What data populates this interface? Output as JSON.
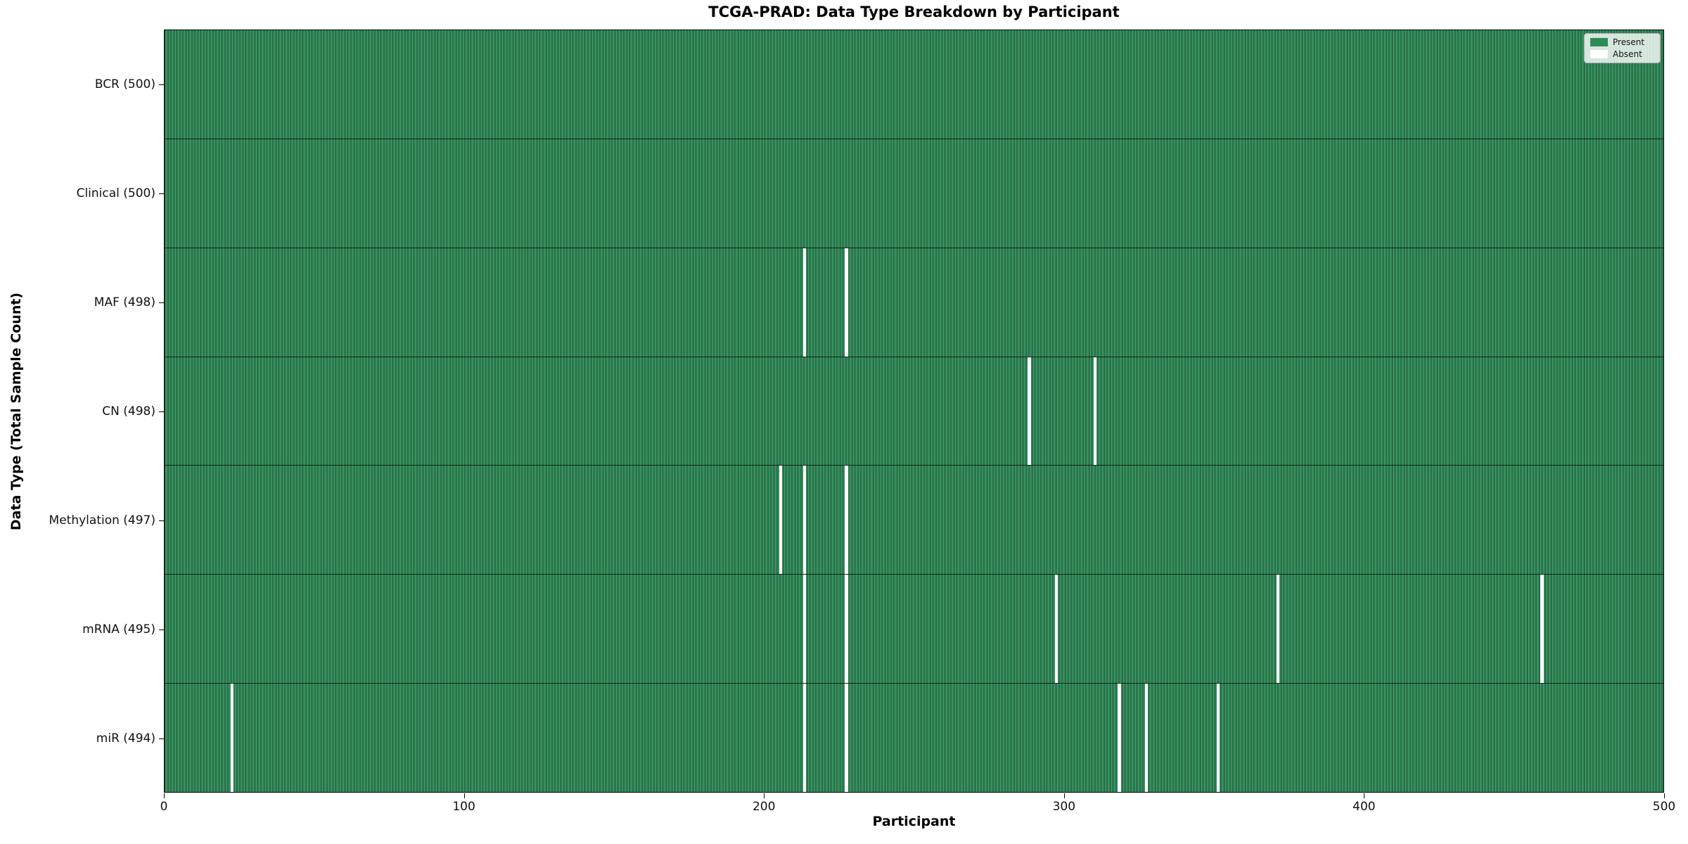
{
  "title": "TCGA-PRAD: Data Type Breakdown by Participant",
  "axes": {
    "xlabel": "Participant",
    "ylabel": "Data Type (Total Sample Count)"
  },
  "legend": {
    "present_label": "Present",
    "absent_label": "Absent"
  },
  "colors": {
    "present": "#2e8b57",
    "present_fill": "#37905f",
    "bar_edge": "#1e5134",
    "absent": "#ffffff",
    "row_separator": "rgba(0,0,0,0.72)",
    "spine": "#000000"
  },
  "chart_data": {
    "type": "heatmap",
    "title": "TCGA-PRAD: Data Type Breakdown by Participant",
    "xlabel": "Participant",
    "ylabel": "Data Type (Total Sample Count)",
    "legend_entries": [
      "Present",
      "Absent"
    ],
    "legend_position": "upper right",
    "grid": false,
    "n_participants": 500,
    "xlim": [
      0,
      500
    ],
    "x_ticks": [
      0,
      100,
      200,
      300,
      400,
      500
    ],
    "rows": [
      {
        "label": "BCR (500)",
        "total": 500,
        "absent_participants": []
      },
      {
        "label": "Clinical (500)",
        "total": 500,
        "absent_participants": []
      },
      {
        "label": "MAF (498)",
        "total": 498,
        "absent_participants": [
          213,
          227
        ]
      },
      {
        "label": "CN (498)",
        "total": 498,
        "absent_participants": [
          288,
          310
        ]
      },
      {
        "label": "Methylation (497)",
        "total": 497,
        "absent_participants": [
          205,
          213,
          227
        ]
      },
      {
        "label": "mRNA (495)",
        "total": 495,
        "absent_participants": [
          213,
          227,
          297,
          371,
          459
        ]
      },
      {
        "label": "miR (494)",
        "total": 494,
        "absent_participants": [
          22,
          213,
          227,
          318,
          327,
          351
        ]
      }
    ]
  }
}
